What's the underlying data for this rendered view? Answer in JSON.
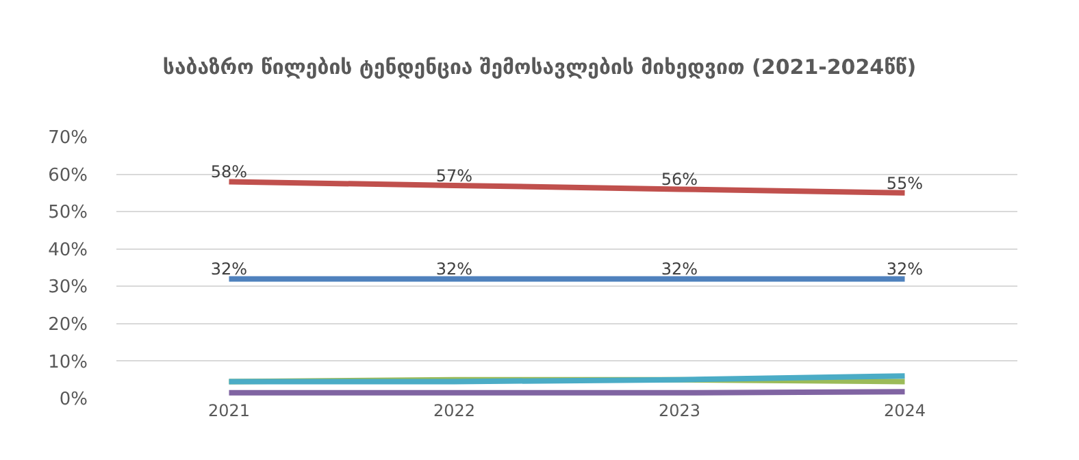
{
  "chart_data": {
    "type": "line",
    "title": "საბაზრო წილების ტენდენცია შემოსავლების მიხედვით (2021-2024წწ)",
    "categories": [
      "2021",
      "2022",
      "2023",
      "2024"
    ],
    "series": [
      {
        "color": "#c0504d",
        "values": [
          58,
          57,
          56,
          55
        ],
        "value_labels": [
          "58%",
          "57%",
          "56%",
          "55%"
        ]
      },
      {
        "color": "#4f81bd",
        "values": [
          32,
          32,
          32,
          32
        ],
        "value_labels": [
          "32%",
          "32%",
          "32%",
          "32%"
        ]
      },
      {
        "color": "#9bbb59",
        "values": [
          4.5,
          5,
          5,
          4.5
        ]
      },
      {
        "color": "#4bacc6",
        "values": [
          4.5,
          4.5,
          5,
          6
        ]
      },
      {
        "color": "#8064a2",
        "values": [
          1.5,
          1.5,
          1.5,
          1.8
        ]
      }
    ],
    "ylim": [
      0,
      70
    ],
    "yticks": [
      {
        "value": 0,
        "label": "0%"
      },
      {
        "value": 10,
        "label": "10%"
      },
      {
        "value": 20,
        "label": "20%"
      },
      {
        "value": 30,
        "label": "30%"
      },
      {
        "value": 40,
        "label": "40%"
      },
      {
        "value": 50,
        "label": "50%"
      },
      {
        "value": 60,
        "label": "60%"
      },
      {
        "value": 70,
        "label": "70%"
      }
    ],
    "grid": "y",
    "marker": "none",
    "line_style": "solid"
  }
}
